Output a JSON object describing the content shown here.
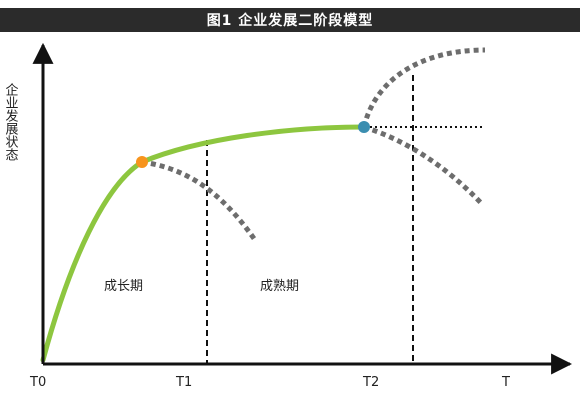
{
  "title": "图1  企业发展二阶段模型",
  "y_axis_label": "企业发展状态",
  "x_ticks": [
    "T0",
    "T1",
    "T2",
    "T"
  ],
  "phases": [
    "成长期",
    "成熟期"
  ],
  "colors": {
    "title_bg": "#2b2b2b",
    "main_curve": "#8dc63f",
    "dashed_branch": "#6d6d6d",
    "point_growth": "#f7941d",
    "point_mature": "#3b8eb0",
    "axis": "#111111"
  }
}
